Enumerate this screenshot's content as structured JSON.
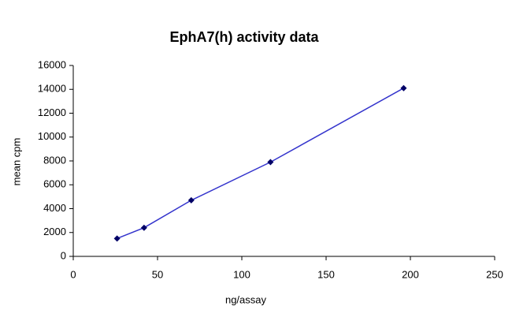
{
  "chart_data": {
    "type": "line",
    "title": "EphA7(h) activity data",
    "x_label": "ng/assay",
    "y_label": "mean cpm",
    "x": [
      26,
      42,
      70,
      117,
      196
    ],
    "series": [
      {
        "name": "EphA7(h)",
        "line_color": "#3333cc",
        "marker_color": "#000066",
        "values": [
          1500,
          2400,
          4700,
          7900,
          14100
        ]
      }
    ],
    "xlim": [
      0,
      250
    ],
    "xticks": [
      0,
      50,
      100,
      150,
      200,
      250
    ],
    "ylim": [
      0,
      16000
    ],
    "yticks": [
      0,
      2000,
      4000,
      6000,
      8000,
      10000,
      12000,
      14000,
      16000
    ],
    "grid": false
  }
}
